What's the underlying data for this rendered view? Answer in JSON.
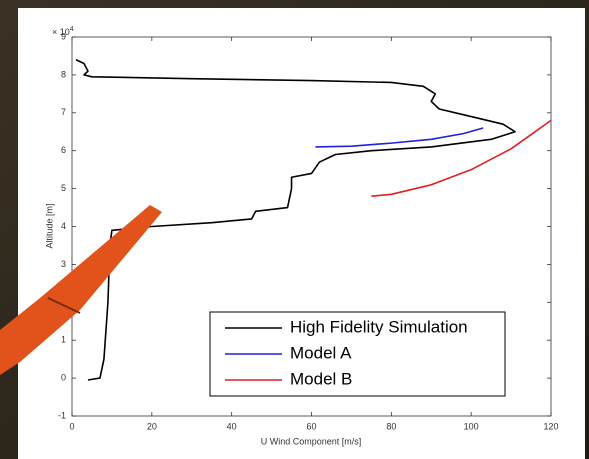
{
  "chart_data": {
    "type": "line",
    "xlabel": "U Wind Component [m/s]",
    "ylabel": "Altitude [m]",
    "y_multiplier": {
      "base": "× 10",
      "exponent": "4"
    },
    "xlim": [
      0,
      120
    ],
    "ylim": [
      -10000,
      90000
    ],
    "xticks": [
      0,
      20,
      40,
      60,
      80,
      100,
      120
    ],
    "yticks": [
      {
        "value": -10000,
        "label": "-1"
      },
      {
        "value": 0,
        "label": "0"
      },
      {
        "value": 10000,
        "label": "1"
      },
      {
        "value": 20000,
        "label": "2"
      },
      {
        "value": 30000,
        "label": "3"
      },
      {
        "value": 40000,
        "label": "4"
      },
      {
        "value": 50000,
        "label": "5"
      },
      {
        "value": 60000,
        "label": "6"
      },
      {
        "value": 70000,
        "label": "7"
      },
      {
        "value": 80000,
        "label": "8"
      },
      {
        "value": 90000,
        "label": "9"
      }
    ],
    "legend": "lower-right",
    "series": [
      {
        "name": "High Fidelity Simulation",
        "color": "#000000",
        "x": [
          4,
          7,
          8,
          9,
          9.5,
          10,
          20,
          35,
          45,
          46,
          54,
          55,
          55,
          60,
          62,
          66,
          75,
          90,
          105,
          111,
          108,
          100,
          92,
          90,
          91,
          88,
          80,
          60,
          30,
          5,
          3,
          4,
          3,
          1
        ],
        "values": [
          -500,
          0,
          5000,
          20000,
          35000,
          39000,
          40000,
          41000,
          42000,
          44000,
          45000,
          50000,
          53000,
          54000,
          57000,
          59000,
          60000,
          61000,
          63000,
          65000,
          67000,
          69000,
          71000,
          73000,
          75000,
          77000,
          78000,
          78500,
          79000,
          79500,
          80000,
          81000,
          83000,
          84000
        ]
      },
      {
        "name": "Model A",
        "color": "#2020e0",
        "x": [
          61,
          70,
          80,
          90,
          98,
          103
        ],
        "values": [
          61000,
          61200,
          62000,
          63000,
          64500,
          66000
        ]
      },
      {
        "name": "Model B",
        "color": "#e02020",
        "x": [
          75,
          80,
          90,
          100,
          110,
          120
        ],
        "values": [
          48000,
          48500,
          51000,
          55000,
          60500,
          68000
        ]
      }
    ]
  }
}
